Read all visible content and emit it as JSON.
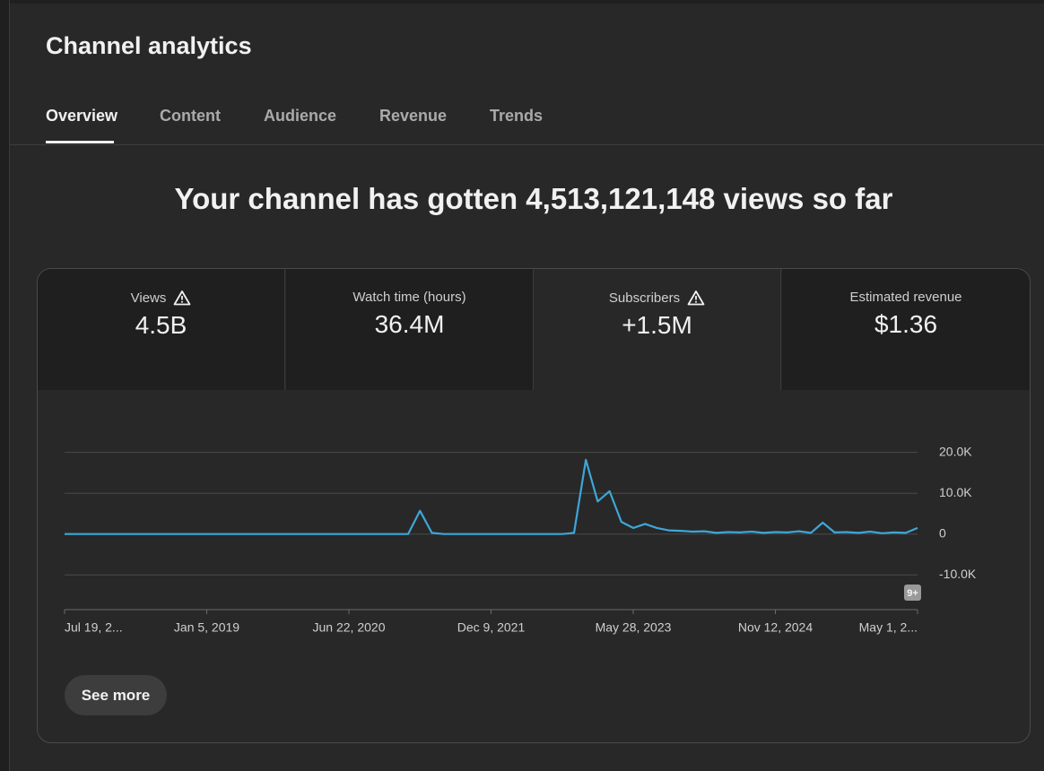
{
  "header": {
    "title": "Channel analytics"
  },
  "tabs": [
    "Overview",
    "Content",
    "Audience",
    "Revenue",
    "Trends"
  ],
  "headline": "Your channel has gotten 4,513,121,148 views so far",
  "metrics": [
    {
      "label": "Views",
      "value": "4.5B"
    },
    {
      "label": "Watch time (hours)",
      "value": "36.4M"
    },
    {
      "label": "Subscribers",
      "value": "+1.5M"
    },
    {
      "label": "Estimated revenue",
      "value": "$1.36"
    }
  ],
  "chart_data": {
    "type": "line",
    "categories": [
      "Jul 19, 2...",
      null,
      null,
      null,
      null,
      null,
      null,
      null,
      null,
      null,
      null,
      null,
      "Jan 5, 2019",
      null,
      null,
      null,
      null,
      null,
      null,
      null,
      null,
      null,
      null,
      null,
      "Jun 22, 2020",
      null,
      null,
      null,
      null,
      null,
      null,
      null,
      null,
      null,
      null,
      null,
      "Dec 9, 2021",
      null,
      null,
      null,
      null,
      null,
      null,
      null,
      null,
      null,
      null,
      null,
      "May 28, 2023",
      null,
      null,
      null,
      null,
      null,
      null,
      null,
      null,
      null,
      null,
      null,
      "Nov 12, 2024",
      null,
      null,
      null,
      null,
      null,
      null,
      null,
      null,
      null,
      null,
      null,
      "May 1, 2..."
    ],
    "series": [
      {
        "name": "Views",
        "color": "#3ea6d8",
        "values": [
          0,
          0,
          0,
          0,
          0,
          0,
          0,
          0,
          0,
          0,
          0,
          0,
          0,
          0,
          0,
          0,
          0,
          0,
          0,
          0,
          0,
          0,
          0,
          0,
          0,
          0,
          0,
          0,
          0,
          0,
          5700,
          300,
          0,
          0,
          0,
          0,
          0,
          0,
          0,
          0,
          0,
          0,
          0,
          300,
          18200,
          8000,
          10500,
          3000,
          1500,
          2500,
          1500,
          900,
          800,
          600,
          700,
          300,
          500,
          400,
          600,
          300,
          500,
          400,
          700,
          300,
          2800,
          400,
          500,
          300,
          600,
          200,
          400,
          300,
          1500
        ]
      }
    ],
    "ylim": [
      -18500,
      23000
    ],
    "yticks": [
      {
        "value": -10000,
        "label": "-10.0K"
      },
      0,
      {
        "value": 10000,
        "label": "10.0K"
      },
      {
        "value": 20000,
        "label": "20.0K"
      }
    ],
    "grid": true,
    "badge": "9+"
  },
  "button": "See more"
}
